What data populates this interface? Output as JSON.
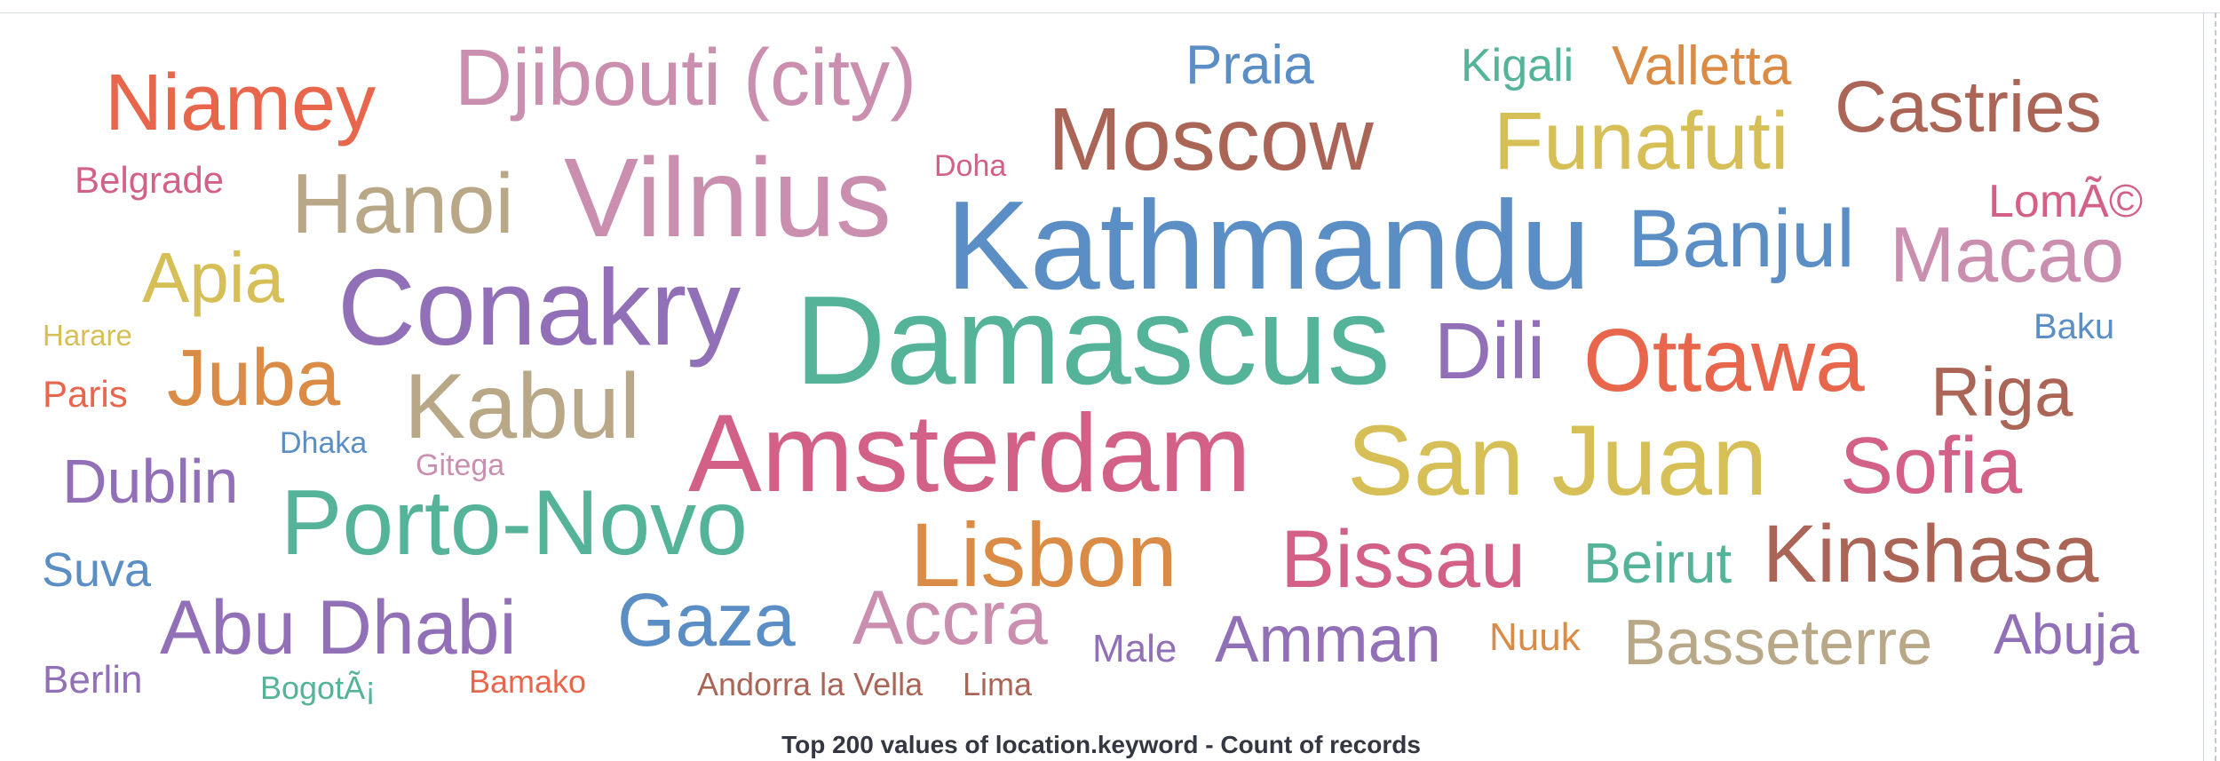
{
  "panel": {
    "caption": "Top 200 values of location.keyword - Count of records"
  },
  "palette": {
    "blue": "#5b8ec4",
    "green": "#54b399",
    "red": "#e7664c",
    "pink": "#d36086",
    "mauve": "#ca8eae",
    "purple": "#9170b8",
    "gold": "#d6bf57",
    "tan": "#b9a888",
    "brown": "#aa6556",
    "orange": "#da8b45"
  },
  "chart_data": {
    "type": "wordcloud",
    "title": "Top 200 values of location.keyword - Count of records",
    "words": [
      {
        "text": "Niamey",
        "size": 90,
        "color": "red"
      },
      {
        "text": "Djibouti (city)",
        "size": 90,
        "color": "mauve"
      },
      {
        "text": "Praia",
        "size": 62,
        "color": "blue"
      },
      {
        "text": "Kigali",
        "size": 52,
        "color": "green"
      },
      {
        "text": "Valletta",
        "size": 62,
        "color": "orange"
      },
      {
        "text": "Castries",
        "size": 82,
        "color": "brown"
      },
      {
        "text": "Belgrade",
        "size": 42,
        "color": "pink"
      },
      {
        "text": "Hanoi",
        "size": 96,
        "color": "tan"
      },
      {
        "text": "Vilnius",
        "size": 126,
        "color": "mauve"
      },
      {
        "text": "Doha",
        "size": 34,
        "color": "pink"
      },
      {
        "text": "Moscow",
        "size": 100,
        "color": "brown"
      },
      {
        "text": "Funafuti",
        "size": 92,
        "color": "gold"
      },
      {
        "text": "LomÃ©",
        "size": 52,
        "color": "pink"
      },
      {
        "text": "Apia",
        "size": 80,
        "color": "gold"
      },
      {
        "text": "Conakry",
        "size": 122,
        "color": "purple"
      },
      {
        "text": "Kathmandu",
        "size": 142,
        "color": "blue"
      },
      {
        "text": "Banjul",
        "size": 92,
        "color": "blue"
      },
      {
        "text": "Macao",
        "size": 88,
        "color": "mauve"
      },
      {
        "text": "Harare",
        "size": 33,
        "color": "gold"
      },
      {
        "text": "Damascus",
        "size": 142,
        "color": "green"
      },
      {
        "text": "Dili",
        "size": 90,
        "color": "purple"
      },
      {
        "text": "Ottawa",
        "size": 100,
        "color": "red"
      },
      {
        "text": "Baku",
        "size": 40,
        "color": "blue"
      },
      {
        "text": "Paris",
        "size": 42,
        "color": "red"
      },
      {
        "text": "Juba",
        "size": 90,
        "color": "orange"
      },
      {
        "text": "Kabul",
        "size": 104,
        "color": "tan"
      },
      {
        "text": "Riga",
        "size": 78,
        "color": "brown"
      },
      {
        "text": "Dhaka",
        "size": 34,
        "color": "blue"
      },
      {
        "text": "Gitega",
        "size": 34,
        "color": "mauve"
      },
      {
        "text": "Amsterdam",
        "size": 124,
        "color": "pink"
      },
      {
        "text": "San Juan",
        "size": 112,
        "color": "gold"
      },
      {
        "text": "Sofia",
        "size": 90,
        "color": "pink"
      },
      {
        "text": "Dublin",
        "size": 70,
        "color": "purple"
      },
      {
        "text": "Porto-Novo",
        "size": 104,
        "color": "green"
      },
      {
        "text": "Lisbon",
        "size": 102,
        "color": "orange"
      },
      {
        "text": "Bissau",
        "size": 92,
        "color": "pink"
      },
      {
        "text": "Beirut",
        "size": 64,
        "color": "green"
      },
      {
        "text": "Kinshasa",
        "size": 92,
        "color": "brown"
      },
      {
        "text": "Suva",
        "size": 54,
        "color": "blue"
      },
      {
        "text": "Abu Dhabi",
        "size": 86,
        "color": "purple"
      },
      {
        "text": "Gaza",
        "size": 84,
        "color": "blue"
      },
      {
        "text": "Accra",
        "size": 86,
        "color": "mauve"
      },
      {
        "text": "Male",
        "size": 44,
        "color": "purple"
      },
      {
        "text": "Amman",
        "size": 74,
        "color": "purple"
      },
      {
        "text": "Nuuk",
        "size": 44,
        "color": "orange"
      },
      {
        "text": "Basseterre",
        "size": 72,
        "color": "tan"
      },
      {
        "text": "Abuja",
        "size": 64,
        "color": "purple"
      },
      {
        "text": "Berlin",
        "size": 44,
        "color": "purple"
      },
      {
        "text": "BogotÃ¡",
        "size": 36,
        "color": "green"
      },
      {
        "text": "Bamako",
        "size": 36,
        "color": "red"
      },
      {
        "text": "Andorra la Vella",
        "size": 36,
        "color": "brown"
      },
      {
        "text": "Lima",
        "size": 36,
        "color": "brown"
      }
    ]
  }
}
